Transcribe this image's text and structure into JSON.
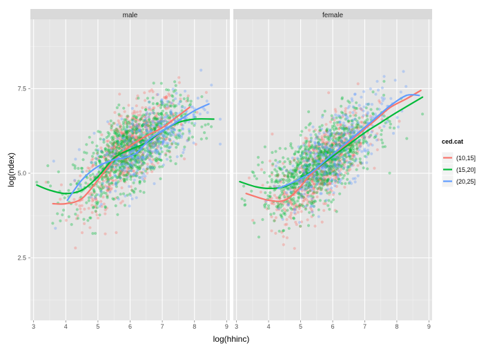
{
  "chart_data": {
    "type": "scatter",
    "xlabel": "log(hhinc)",
    "ylabel": "log(ndex)",
    "xlim": [
      2.9,
      9.1
    ],
    "ylim": [
      0.65,
      9.55
    ],
    "x_ticks": [
      3,
      4,
      5,
      6,
      7,
      8,
      9
    ],
    "x_tick_labels": [
      "3",
      "4",
      "5",
      "6",
      "7",
      "8",
      "9"
    ],
    "y_ticks": [
      2.5,
      5.0,
      7.5
    ],
    "y_tick_labels": [
      "2.5",
      "5.0",
      "7.5"
    ],
    "grid": true,
    "legend": {
      "title": "ced.cat",
      "placement": "right",
      "entries": [
        "(10,15]",
        "(15,20]",
        "(20,25]"
      ]
    },
    "series_colors": {
      "(10,15]": "#F8766D",
      "(15,20]": "#00BA38",
      "(20,25]": "#619CFF"
    },
    "panels": [
      {
        "label": "male",
        "smooth_lines": [
          {
            "name": "(10,15]",
            "x": [
              3.6,
              4.0,
              4.5,
              5.0,
              5.5,
              6.0,
              6.5,
              7.0,
              7.5,
              7.85
            ],
            "y": [
              4.1,
              4.1,
              4.25,
              4.8,
              5.4,
              5.8,
              6.1,
              6.35,
              6.7,
              6.95
            ]
          },
          {
            "name": "(15,20]",
            "x": [
              3.1,
              3.5,
              4.0,
              4.5,
              5.0,
              5.5,
              6.0,
              6.5,
              7.0,
              7.5,
              8.0,
              8.6
            ],
            "y": [
              4.65,
              4.5,
              4.4,
              4.5,
              4.9,
              5.45,
              5.7,
              5.9,
              6.25,
              6.5,
              6.6,
              6.6
            ]
          },
          {
            "name": "(20,25]",
            "x": [
              4.05,
              4.5,
              5.0,
              5.5,
              5.8,
              6.2,
              6.6,
              7.0,
              7.5,
              8.0,
              8.45
            ],
            "y": [
              4.2,
              4.8,
              5.2,
              5.4,
              5.45,
              5.6,
              6.0,
              6.25,
              6.55,
              6.85,
              7.05
            ]
          }
        ]
      },
      {
        "label": "female",
        "smooth_lines": [
          {
            "name": "(10,15]",
            "x": [
              3.3,
              4.0,
              4.5,
              4.9,
              5.3,
              5.8,
              6.3,
              6.8,
              7.3,
              7.8,
              8.3,
              8.75
            ],
            "y": [
              4.4,
              4.2,
              4.2,
              4.5,
              4.95,
              5.35,
              5.75,
              6.15,
              6.55,
              6.95,
              7.2,
              7.45
            ]
          },
          {
            "name": "(15,20]",
            "x": [
              3.1,
              3.6,
              4.0,
              4.5,
              5.0,
              5.5,
              6.0,
              6.5,
              7.0,
              7.5,
              8.0,
              8.8
            ],
            "y": [
              4.75,
              4.6,
              4.55,
              4.6,
              4.85,
              5.15,
              5.5,
              5.85,
              6.2,
              6.5,
              6.8,
              7.25
            ]
          },
          {
            "name": "(20,25]",
            "x": [
              4.3,
              4.8,
              5.3,
              5.8,
              6.3,
              6.8,
              7.3,
              7.8,
              8.3,
              8.7
            ],
            "y": [
              4.55,
              4.75,
              5.0,
              5.4,
              5.8,
              6.2,
              6.6,
              7.0,
              7.3,
              7.3
            ]
          }
        ]
      }
    ]
  }
}
